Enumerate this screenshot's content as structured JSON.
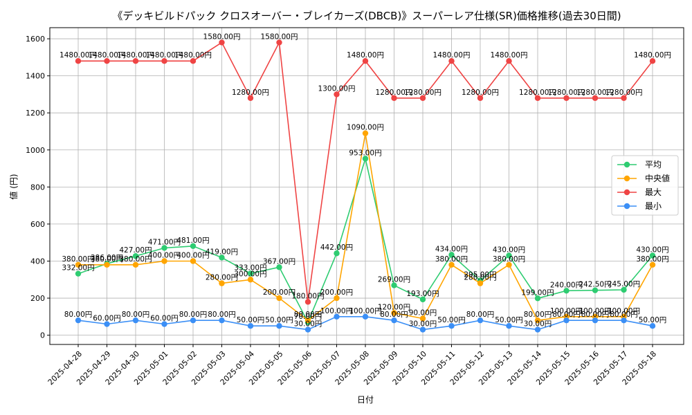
{
  "chart_data": {
    "type": "line",
    "title": "《デッキビルドパック クロスオーバー・ブレイカーズ(DBCB)》スーパーレア仕様(SR)価格推移(過去30日間)",
    "xlabel": "日付",
    "ylabel": "値 (円)",
    "ylim": [
      -50,
      1660
    ],
    "yticks": [
      0,
      200,
      400,
      600,
      800,
      1000,
      1200,
      1400,
      1600
    ],
    "grid": true,
    "legend_position": "center-right",
    "value_suffix": "円",
    "categories": [
      "2025-04-28",
      "2025-04-29",
      "2025-04-30",
      "2025-05-01",
      "2025-05-02",
      "2025-05-03",
      "2025-05-04",
      "2025-05-05",
      "2025-05-06",
      "2025-05-07",
      "2025-05-08",
      "2025-05-09",
      "2025-05-10",
      "2025-05-11",
      "2025-05-12",
      "2025-05-13",
      "2025-05-14",
      "2025-05-15",
      "2025-05-16",
      "2025-05-17",
      "2025-05-18"
    ],
    "series": [
      {
        "name": "平均",
        "color": "#2ecc71",
        "values": [
          332,
          386,
          427,
          471,
          481,
          419,
          333,
          367,
          70,
          442,
          953,
          269,
          193,
          434,
          295,
          430,
          199,
          240,
          242.5,
          245,
          430
        ]
      },
      {
        "name": "中央値",
        "color": "#ffa500",
        "values": [
          380,
          380,
          380,
          400,
          400,
          280,
          300,
          200,
          80,
          200,
          1090,
          120,
          90,
          380,
          280,
          380,
          80,
          100,
          100,
          100,
          380
        ]
      },
      {
        "name": "最大",
        "color": "#ef4444",
        "values": [
          1480,
          1480,
          1480,
          1480,
          1480,
          1580,
          1280,
          1580,
          180,
          1300,
          1480,
          1280,
          1280,
          1480,
          1280,
          1480,
          1280,
          1280,
          1280,
          1280,
          1480
        ]
      },
      {
        "name": "最小",
        "color": "#3b8ff6",
        "values": [
          80,
          60,
          80,
          60,
          80,
          80,
          50,
          50,
          30,
          100,
          100,
          80,
          30,
          50,
          80,
          50,
          30,
          80,
          80,
          80,
          50
        ]
      }
    ]
  }
}
